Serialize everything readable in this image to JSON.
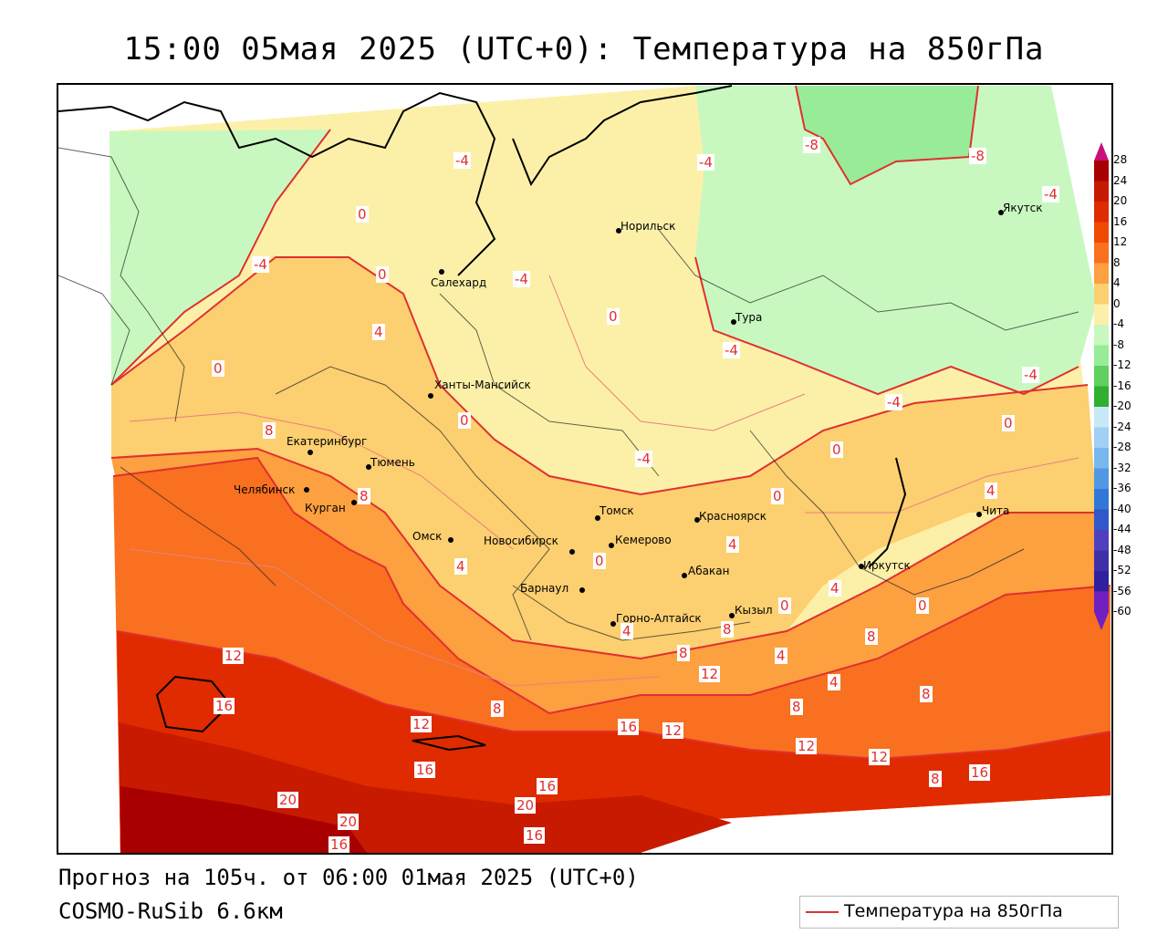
{
  "title": "15:00 05мая 2025 (UTC+0): Температура на 850гПа",
  "footer": {
    "forecast": "Прогноз на 105ч. от 06:00 01мая 2025 (UTC+0)",
    "model": "COSMO-RuSib 6.6км"
  },
  "legend": {
    "label": "Температура на 850гПа",
    "line_color": "#e03030"
  },
  "colorbar": {
    "ticks": [
      "28",
      "24",
      "20",
      "16",
      "12",
      "8",
      "4",
      "0",
      "-4",
      "-8",
      "-12",
      "-16",
      "-20",
      "-24",
      "-28",
      "-32",
      "-36",
      "-40",
      "-44",
      "-48",
      "-52",
      "-56",
      "-60"
    ],
    "colors": [
      "#c8107a",
      "#a80000",
      "#c81a00",
      "#e02a00",
      "#f04a00",
      "#f87020",
      "#fca040",
      "#fccf70",
      "#fcf0a8",
      "#c8f8c0",
      "#98ec98",
      "#60d060",
      "#30b030",
      "#c8e8f8",
      "#a0d0f4",
      "#78b8ee",
      "#5098e4",
      "#3078d8",
      "#3058c8",
      "#5040c0",
      "#4030a8",
      "#3020a0",
      "#7020c0"
    ]
  },
  "cities": [
    {
      "name": "Норильск"
    },
    {
      "name": "Якутск"
    },
    {
      "name": "Салехард"
    },
    {
      "name": "Тура"
    },
    {
      "name": "Ханты-Мансийск"
    },
    {
      "name": "Екатеринбург"
    },
    {
      "name": "Тюмень"
    },
    {
      "name": "Челябинск"
    },
    {
      "name": "Курган"
    },
    {
      "name": "Омск"
    },
    {
      "name": "Томск"
    },
    {
      "name": "Красноярск"
    },
    {
      "name": "Новосибирск"
    },
    {
      "name": "Кемерово"
    },
    {
      "name": "Барнаул"
    },
    {
      "name": "Абакан"
    },
    {
      "name": "Иркутск"
    },
    {
      "name": "Чита"
    },
    {
      "name": "Горно-Алтайск"
    },
    {
      "name": "Кызыл"
    }
  ],
  "contour_labels": [
    "-4",
    "-4",
    "-8",
    "-8",
    "-4",
    "0",
    "-4",
    "0",
    "-4",
    "0",
    "-4",
    "-4",
    "-4",
    "0",
    "4",
    "0",
    "0",
    "8",
    "0",
    "0",
    "-4",
    "0",
    "8",
    "4",
    "4",
    "0",
    "4",
    "4",
    "0",
    "4",
    "8",
    "8",
    "4",
    "8",
    "8",
    "4",
    "12",
    "12",
    "16",
    "8",
    "12",
    "16",
    "12",
    "16",
    "12",
    "12",
    "8",
    "8",
    "16",
    "20",
    "20",
    "16",
    "16",
    "20",
    "16"
  ]
}
